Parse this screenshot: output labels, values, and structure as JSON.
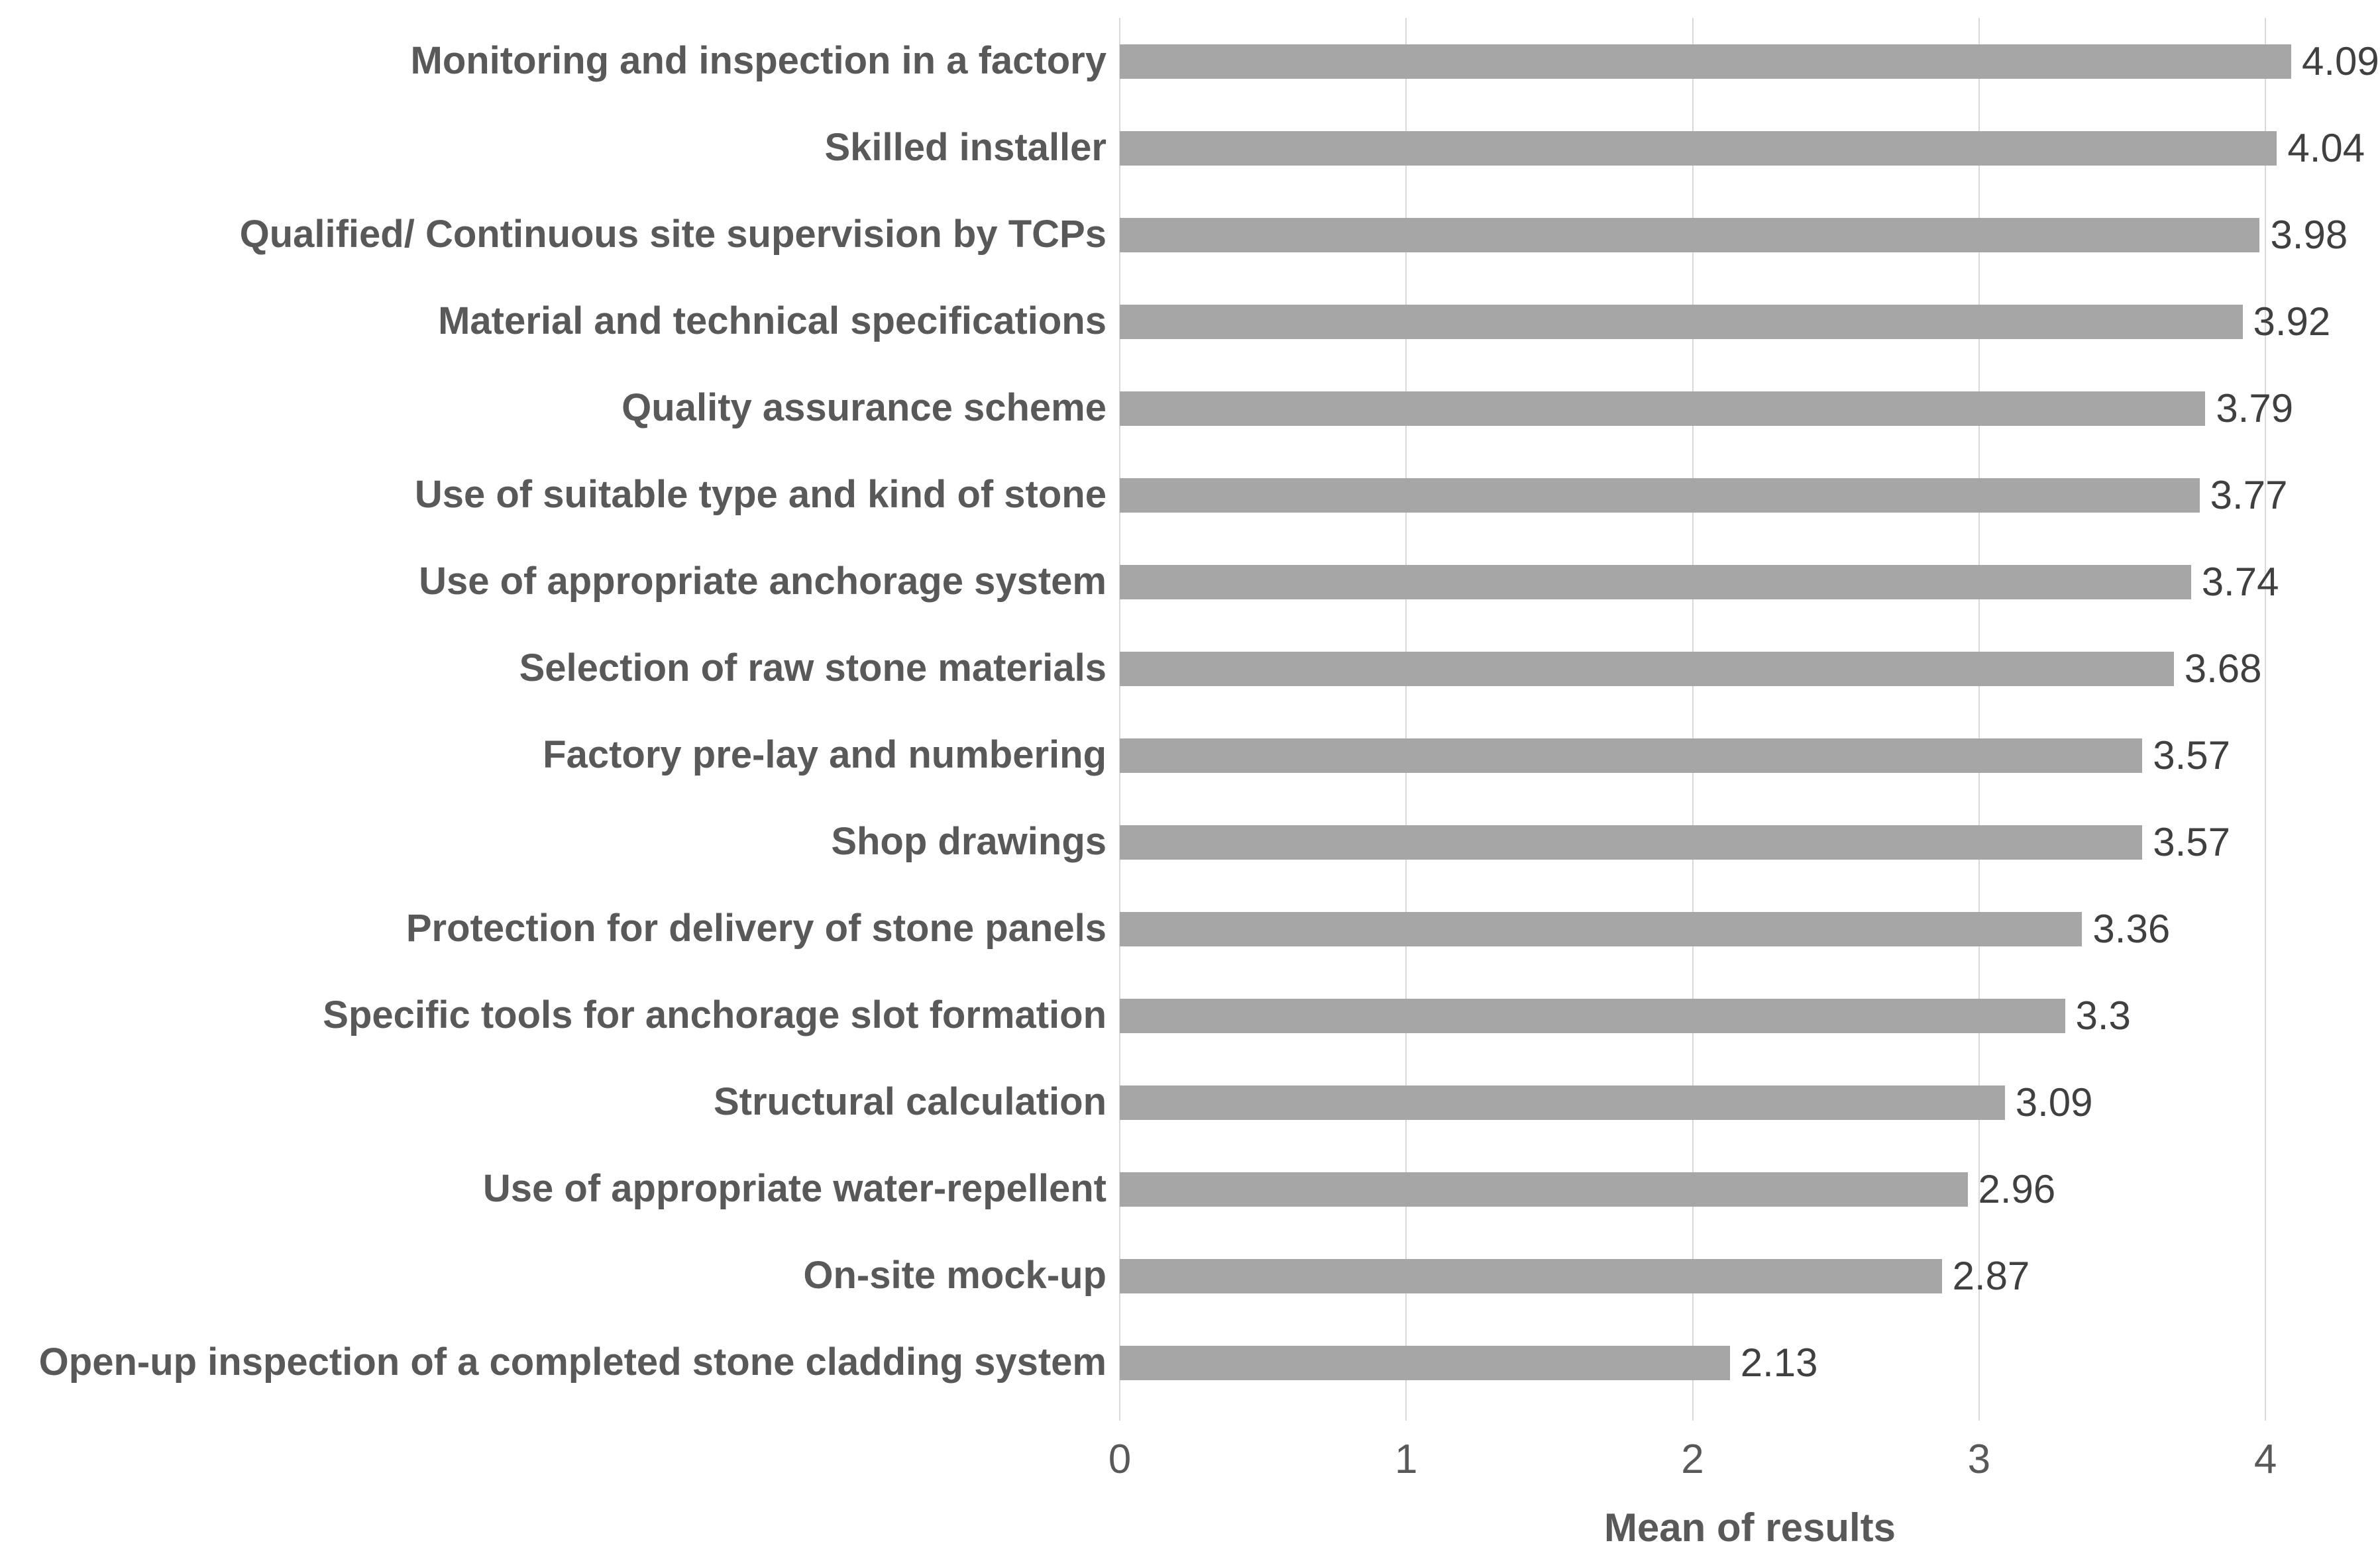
{
  "chart_data": {
    "type": "bar",
    "orientation": "horizontal",
    "title": "",
    "xlabel": "Mean of results",
    "ylabel": "",
    "categories": [
      "Monitoring and inspection in a factory",
      "Skilled installer",
      "Qualified/ Continuous site supervision by TCPs",
      "Material and technical specifications",
      "Quality assurance scheme",
      "Use of suitable type and kind of stone",
      "Use of appropriate anchorage system",
      "Selection of raw stone materials",
      "Factory pre-lay and numbering",
      "Shop drawings",
      "Protection for delivery of stone panels",
      "Specific tools for anchorage slot formation",
      "Structural calculation",
      "Use of appropriate water-repellent",
      "On-site mock-up",
      "Open-up inspection of a completed stone cladding system"
    ],
    "values": [
      4.09,
      4.04,
      3.98,
      3.92,
      3.79,
      3.77,
      3.74,
      3.68,
      3.57,
      3.57,
      3.36,
      3.3,
      3.09,
      2.96,
      2.87,
      2.13
    ],
    "value_labels": [
      "4.09",
      "4.04",
      "3.98",
      "3.92",
      "3.79",
      "3.77",
      "3.74",
      "3.68",
      "3.57",
      "3.57",
      "3.36",
      "3.3",
      "3.09",
      "2.96",
      "2.87",
      "2.13"
    ],
    "xticks": [
      0,
      1,
      2,
      3,
      4
    ],
    "xlim": [
      0,
      4.4
    ],
    "grid": true,
    "legend": false,
    "colors": {
      "bar": "#a6a6a6",
      "gridline": "#d9d9d9",
      "category_label": "#595959",
      "value_label": "#404040"
    }
  }
}
